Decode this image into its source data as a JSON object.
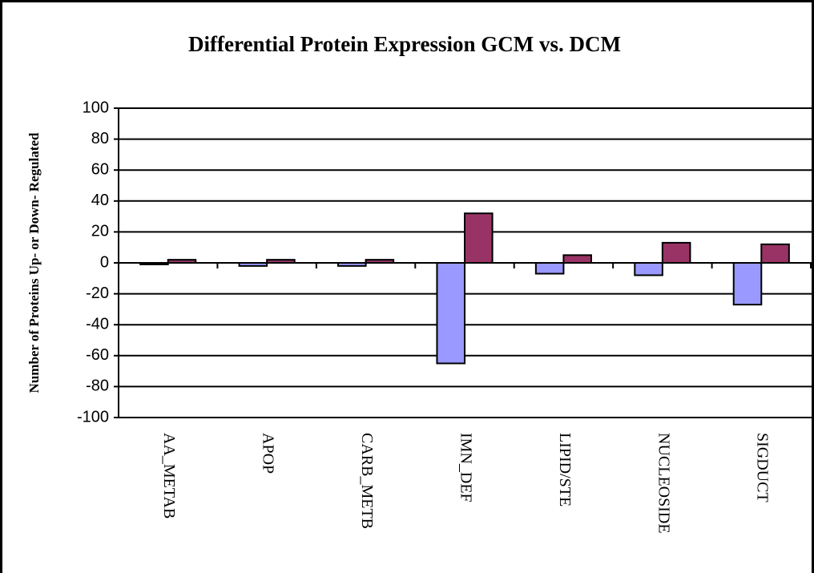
{
  "chart_data": {
    "type": "bar",
    "title": "Differential Protein Expression GCM vs. DCM",
    "y_label": "Number of Proteins Up- or Down- Regulated",
    "categories": [
      "AA_METAB",
      "APOP",
      "CARB_METB",
      "IMN_DEF",
      "LIPID/STE",
      "NUCLEOSIDE",
      "SIGDUCT"
    ],
    "series": [
      {
        "color": "#9999ff",
        "values": [
          -1,
          -2,
          -2,
          -65,
          -7,
          -8,
          -27
        ]
      },
      {
        "color": "#993366",
        "values": [
          2,
          2,
          2,
          32,
          5,
          13,
          12
        ]
      }
    ],
    "ylim": [
      -100,
      100
    ],
    "yticks": [
      -100,
      -80,
      -60,
      -40,
      -20,
      0,
      20,
      40,
      60,
      80,
      100
    ],
    "grid": true
  }
}
